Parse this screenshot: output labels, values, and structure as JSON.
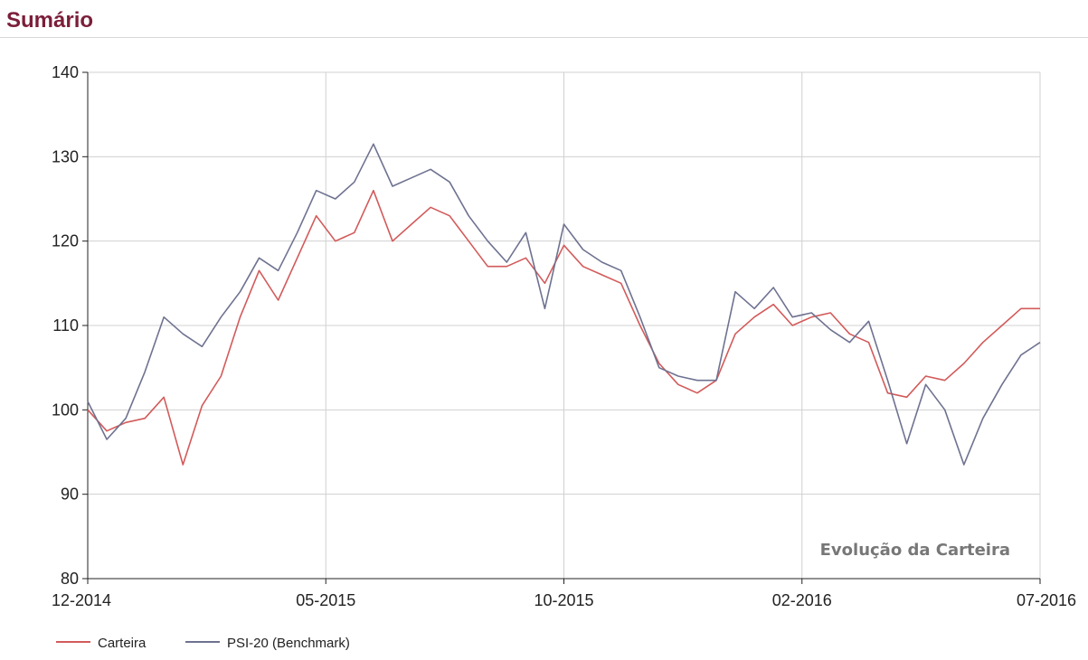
{
  "header": {
    "title": "Sumário"
  },
  "chart_data": {
    "type": "line",
    "annotation": "Evolução da Carteira",
    "x_tick_labels": [
      "12-2014",
      "05-2015",
      "10-2015",
      "02-2016",
      "07-2016"
    ],
    "ylim": [
      80,
      140
    ],
    "yticks": [
      80,
      90,
      100,
      110,
      120,
      130,
      140
    ],
    "grid": true,
    "legend_position": "bottom-left",
    "x": [
      0,
      0.02,
      0.04,
      0.06,
      0.08,
      0.1,
      0.12,
      0.14,
      0.16,
      0.18,
      0.2,
      0.22,
      0.24,
      0.26,
      0.28,
      0.3,
      0.32,
      0.34,
      0.36,
      0.38,
      0.4,
      0.42,
      0.44,
      0.46,
      0.48,
      0.5,
      0.52,
      0.54,
      0.56,
      0.58,
      0.6,
      0.62,
      0.64,
      0.66,
      0.68,
      0.7,
      0.72,
      0.74,
      0.76,
      0.78,
      0.8,
      0.82,
      0.84,
      0.86,
      0.88,
      0.9,
      0.92,
      0.94,
      0.96,
      0.98,
      1.0
    ],
    "series": [
      {
        "name": "Carteira",
        "color": "#d35a5a",
        "values": [
          100,
          97.5,
          98.5,
          99,
          101.5,
          93.5,
          100.5,
          104,
          111,
          116.5,
          113,
          118,
          123,
          120,
          121,
          126,
          120,
          122,
          124,
          123,
          120,
          117,
          117,
          118,
          115,
          119.5,
          117,
          116,
          115,
          110,
          105.5,
          103,
          102,
          103.5,
          109,
          111,
          112.5,
          110,
          111,
          111.5,
          109,
          108,
          102,
          101.5,
          104,
          103.5,
          105.5,
          108,
          110,
          112,
          112
        ]
      },
      {
        "name": "PSI-20 (Benchmark)",
        "color": "#6e7290",
        "values": [
          101,
          96.5,
          99,
          104.5,
          111,
          109,
          107.5,
          111,
          114,
          118,
          116.5,
          121,
          126,
          125,
          127,
          131.5,
          126.5,
          127.5,
          128.5,
          127,
          123,
          120,
          117.5,
          121,
          112,
          122,
          119,
          117.5,
          116.5,
          111,
          105,
          104,
          103.5,
          103.5,
          114,
          112,
          114.5,
          111,
          111.5,
          109.5,
          108,
          110.5,
          103.5,
          96,
          103,
          100,
          93.5,
          99,
          103,
          106.5,
          108
        ]
      }
    ]
  }
}
